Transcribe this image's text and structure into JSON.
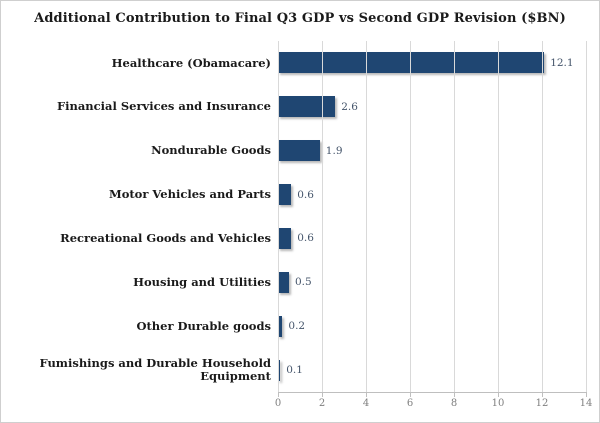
{
  "title": "Additional Contribution to Final Q3 GDP vs Second GDP Revision ($BN)",
  "chart_data": {
    "type": "bar",
    "orientation": "horizontal",
    "title": "Additional Contribution to Final Q3 GDP vs Second GDP Revision ($BN)",
    "categories": [
      "Healthcare (Obamacare)",
      "Financial Services and Insurance",
      "Nondurable Goods",
      "Motor Vehicles and Parts",
      "Recreational Goods and Vehicles",
      "Housing and Utilities",
      "Other Durable goods",
      "Fumishings and Durable Household Equipment"
    ],
    "values": [
      12.1,
      2.6,
      1.9,
      0.6,
      0.6,
      0.5,
      0.2,
      0.1
    ],
    "value_labels": [
      "12.1",
      "2.6",
      "1.9",
      "0.6",
      "0.6",
      "0.5",
      "0.2",
      "0.1"
    ],
    "xlabel": "",
    "ylabel": "",
    "xlim": [
      0,
      14
    ],
    "x_ticks": [
      0,
      2,
      4,
      6,
      8,
      10,
      12,
      14
    ],
    "grid": "vertical-only",
    "legend": "none"
  },
  "colors": {
    "bar": "#1f4672",
    "gridline": "#d9d9d9",
    "axis": "#bfbfbf",
    "tick_label": "#7f7f7f",
    "title_text": "#1a1a1a",
    "value_label": "#44546a",
    "background": "#ffffff"
  }
}
